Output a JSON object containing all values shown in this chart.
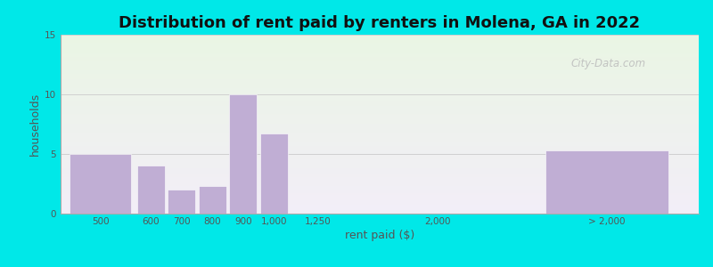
{
  "title": "Distribution of rent paid by renters in Molena, GA in 2022",
  "xlabel": "rent paid ($)",
  "ylabel": "households",
  "background_outer": "#00e8e8",
  "bar_color": "#c0aed4",
  "yticks": [
    0,
    5,
    10,
    15
  ],
  "ylim": [
    0,
    15
  ],
  "grid_color": "#d0d0d0",
  "title_fontsize": 13,
  "axis_label_fontsize": 9,
  "tick_fontsize": 7.5,
  "watermark": "City-Data.com",
  "bar_lefts": [
    0.0,
    2.2,
    3.2,
    4.2,
    5.2,
    6.2,
    7.2,
    12.0,
    15.5
  ],
  "bar_widths": [
    2.0,
    0.9,
    0.9,
    0.9,
    0.9,
    0.9,
    1.8,
    0.0,
    4.0
  ],
  "bar_heights": [
    5.0,
    4.0,
    2.0,
    2.3,
    10.0,
    6.7,
    0.0,
    0.0,
    5.3
  ],
  "tick_positions": [
    1.0,
    2.65,
    3.65,
    4.65,
    5.65,
    6.65,
    8.1,
    12.0,
    17.5
  ],
  "tick_labels": [
    "500",
    "600",
    "700",
    "800",
    "900",
    "1,000",
    "1,250",
    "2,000",
    "> 2,000"
  ],
  "xlim": [
    -0.3,
    20.5
  ],
  "bg_color_top": "#eaf6e4",
  "bg_color_bottom": "#f3eef8"
}
